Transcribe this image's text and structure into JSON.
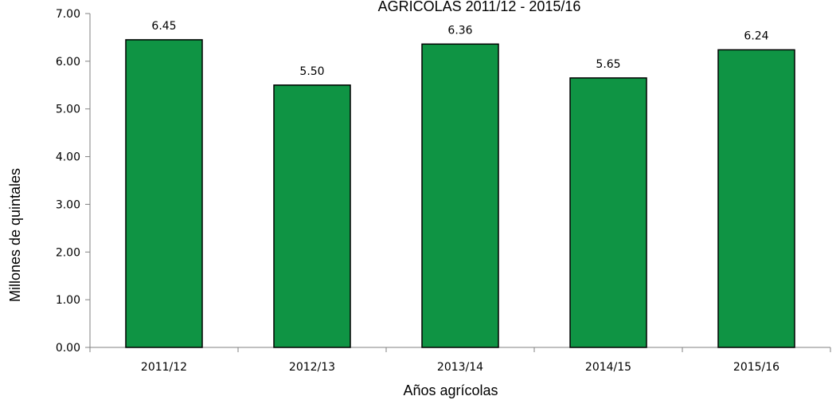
{
  "chart_data": {
    "type": "bar",
    "title": "AGRICOLAS 2011/12 - 2015/16",
    "xlabel": "Años agrícolas",
    "ylabel": "Millones de quintales",
    "categories": [
      "2011/12",
      "2012/13",
      "2013/14",
      "2014/15",
      "2015/16"
    ],
    "values": [
      6.45,
      5.5,
      6.36,
      5.65,
      6.24
    ],
    "value_labels": [
      "6.45",
      "5.50",
      "6.36",
      "5.65",
      "6.24"
    ],
    "ylim": [
      0,
      7
    ],
    "yticks": [
      "0.00",
      "1.00",
      "2.00",
      "3.00",
      "4.00",
      "5.00",
      "6.00",
      "7.00"
    ],
    "grid": false,
    "bar_color": "#0f9444",
    "bar_border_color": "#000000"
  }
}
